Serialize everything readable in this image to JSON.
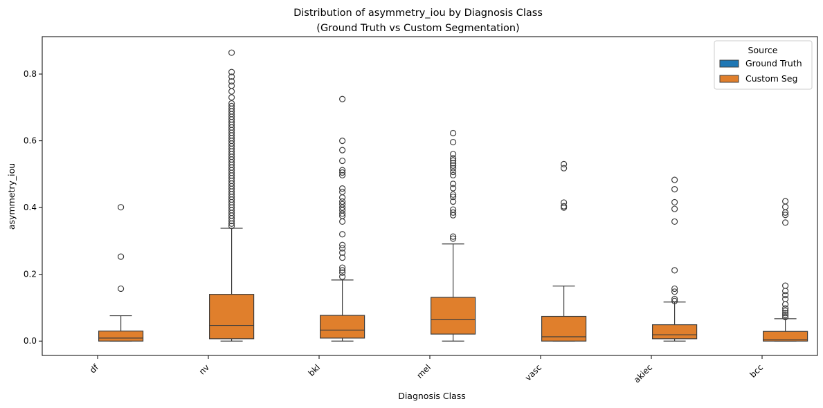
{
  "chart_data": {
    "type": "boxplot",
    "title": "Distribution of asymmetry_iou by Diagnosis Class",
    "subtitle": "(Ground Truth vs Custom Segmentation)",
    "xlabel": "Diagnosis Class",
    "ylabel": "asymmetry_iou",
    "ylim": [
      -0.043,
      0.912
    ],
    "yticks": [
      0.0,
      0.2,
      0.4,
      0.6,
      0.8
    ],
    "ytick_labels": [
      "0.0",
      "0.2",
      "0.4",
      "0.6",
      "0.8"
    ],
    "categories": [
      "df",
      "nv",
      "bkl",
      "mel",
      "vasc",
      "akiec",
      "bcc"
    ],
    "grid": false,
    "legend": {
      "title": "Source",
      "position": "top-right",
      "entries": [
        {
          "name": "Ground Truth",
          "color": "#1f77b4"
        },
        {
          "name": "Custom Seg",
          "color": "#e07f2c"
        }
      ]
    },
    "series": [
      {
        "name": "Custom Seg",
        "color": "#e07f2c",
        "boxes": [
          {
            "category": "df",
            "whisker_low": 0.0,
            "q1": 0.0,
            "median": 0.009,
            "q3": 0.03,
            "whisker_high": 0.076,
            "outliers": [
              0.157,
              0.253,
              0.401
            ]
          },
          {
            "category": "nv",
            "whisker_low": 0.0,
            "q1": 0.007,
            "median": 0.047,
            "q3": 0.14,
            "whisker_high": 0.338,
            "outliers": [
              0.345,
              0.352,
              0.36,
              0.368,
              0.376,
              0.384,
              0.392,
              0.4,
              0.408,
              0.416,
              0.424,
              0.432,
              0.44,
              0.448,
              0.456,
              0.464,
              0.472,
              0.48,
              0.488,
              0.496,
              0.504,
              0.512,
              0.52,
              0.528,
              0.536,
              0.544,
              0.552,
              0.56,
              0.568,
              0.576,
              0.584,
              0.592,
              0.6,
              0.608,
              0.616,
              0.624,
              0.632,
              0.64,
              0.648,
              0.656,
              0.664,
              0.672,
              0.68,
              0.688,
              0.696,
              0.704,
              0.712,
              0.73,
              0.748,
              0.765,
              0.778,
              0.792,
              0.806,
              0.864
            ]
          },
          {
            "category": "bkl",
            "whisker_low": 0.0,
            "q1": 0.009,
            "median": 0.033,
            "q3": 0.077,
            "whisker_high": 0.183,
            "outliers": [
              0.193,
              0.205,
              0.212,
              0.22,
              0.25,
              0.265,
              0.278,
              0.288,
              0.32,
              0.358,
              0.375,
              0.382,
              0.392,
              0.4,
              0.41,
              0.418,
              0.43,
              0.447,
              0.457,
              0.497,
              0.505,
              0.512,
              0.54,
              0.572,
              0.6,
              0.725
            ]
          },
          {
            "category": "mel",
            "whisker_low": 0.0,
            "q1": 0.021,
            "median": 0.064,
            "q3": 0.131,
            "whisker_high": 0.291,
            "outliers": [
              0.307,
              0.313,
              0.377,
              0.385,
              0.394,
              0.418,
              0.432,
              0.439,
              0.458,
              0.471,
              0.497,
              0.507,
              0.518,
              0.526,
              0.533,
              0.541,
              0.548,
              0.56,
              0.596,
              0.623
            ]
          },
          {
            "category": "vasc",
            "whisker_low": 0.0,
            "q1": 0.0,
            "median": 0.013,
            "q3": 0.074,
            "whisker_high": 0.165,
            "outliers": [
              0.4,
              0.404,
              0.415,
              0.518,
              0.53
            ]
          },
          {
            "category": "akiec",
            "whisker_low": 0.0,
            "q1": 0.007,
            "median": 0.019,
            "q3": 0.049,
            "whisker_high": 0.117,
            "outliers": [
              0.12,
              0.126,
              0.148,
              0.157,
              0.212,
              0.358,
              0.396,
              0.416,
              0.455,
              0.483
            ]
          },
          {
            "category": "bcc",
            "whisker_low": 0.0,
            "q1": 0.0,
            "median": 0.004,
            "q3": 0.029,
            "whisker_high": 0.067,
            "outliers": [
              0.072,
              0.078,
              0.084,
              0.091,
              0.098,
              0.11,
              0.126,
              0.138,
              0.15,
              0.166,
              0.355,
              0.378,
              0.385,
              0.402,
              0.419
            ]
          }
        ]
      }
    ]
  }
}
